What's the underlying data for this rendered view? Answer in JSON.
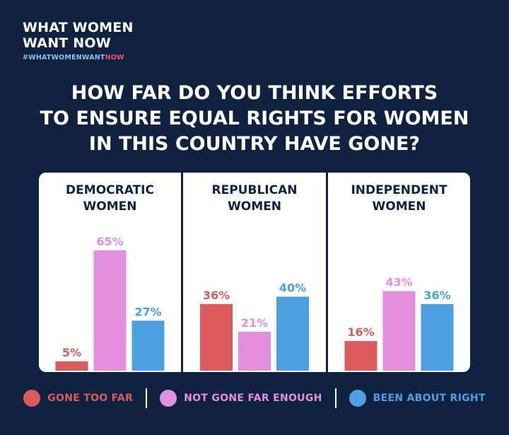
{
  "brand": {
    "line1": "WHAT WOMEN",
    "line2": "WANT NOW",
    "hashtag_a": "#WHATWOMENWANT",
    "hashtag_b": "NOW"
  },
  "headline": {
    "line1": "HOW FAR DO YOU THINK EFFORTS",
    "line2": "TO ENSURE EQUAL RIGHTS FOR WOMEN",
    "line3": "IN THIS COUNTRY HAVE GONE?"
  },
  "colors": {
    "background": "#0f2340",
    "gone_too_far": "#db5a5e",
    "not_gone_far_enough": "#e28fde",
    "been_about_right": "#4c9fe0"
  },
  "chart_data": [
    {
      "type": "bar",
      "title_line1": "DEMOCRATIC",
      "title_line2": "WOMEN",
      "categories": [
        "GONE TOO FAR",
        "NOT GONE FAR ENOUGH",
        "BEEN ABOUT RIGHT"
      ],
      "values": [
        5,
        65,
        27
      ],
      "labels": [
        "5%",
        "65%",
        "27%"
      ],
      "ylim": [
        0,
        70
      ]
    },
    {
      "type": "bar",
      "title_line1": "REPUBLICAN",
      "title_line2": "WOMEN",
      "categories": [
        "GONE TOO FAR",
        "NOT GONE FAR ENOUGH",
        "BEEN ABOUT RIGHT"
      ],
      "values": [
        36,
        21,
        40
      ],
      "labels": [
        "36%",
        "21%",
        "40%"
      ],
      "ylim": [
        0,
        70
      ]
    },
    {
      "type": "bar",
      "title_line1": "INDEPENDENT",
      "title_line2": "WOMEN",
      "categories": [
        "GONE TOO FAR",
        "NOT GONE FAR ENOUGH",
        "BEEN ABOUT RIGHT"
      ],
      "values": [
        16,
        43,
        36
      ],
      "labels": [
        "16%",
        "43%",
        "36%"
      ],
      "ylim": [
        0,
        70
      ]
    }
  ],
  "legend": {
    "items": [
      {
        "label": "GONE TOO FAR",
        "color": "#db5a5e"
      },
      {
        "label": "NOT GONE FAR ENOUGH",
        "color": "#e28fde"
      },
      {
        "label": "BEEN ABOUT RIGHT",
        "color": "#4c9fe0"
      }
    ]
  }
}
